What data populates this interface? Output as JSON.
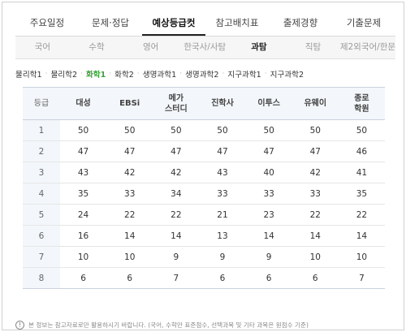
{
  "main_tabs": [
    {
      "label": "주요일정"
    },
    {
      "label": "문제·정답"
    },
    {
      "label": "예상등급컷",
      "active": true
    },
    {
      "label": "참고배치표"
    },
    {
      "label": "출제경향"
    },
    {
      "label": "기출문제"
    }
  ],
  "sub_tabs": [
    {
      "label": "국어"
    },
    {
      "label": "수학"
    },
    {
      "label": "영어"
    },
    {
      "label": "한국사/사탐"
    },
    {
      "label": "과탐",
      "active": true
    },
    {
      "label": "직탐"
    },
    {
      "label": "제2외국어/한문"
    }
  ],
  "subjects": [
    {
      "label": "물리학1"
    },
    {
      "label": "물리학2"
    },
    {
      "label": "화학1",
      "active": true
    },
    {
      "label": "화학2"
    },
    {
      "label": "생명과학1"
    },
    {
      "label": "생명과학2"
    },
    {
      "label": "지구과학1"
    },
    {
      "label": "지구과학2"
    }
  ],
  "table": {
    "grade_header": "등급",
    "columns": [
      "대성",
      "EBSi",
      "메가\n스터디",
      "진학사",
      "이투스",
      "유웨이",
      "종로\n학원"
    ],
    "rows": [
      {
        "grade": "1",
        "values": [
          "50",
          "50",
          "50",
          "50",
          "50",
          "50",
          "50"
        ]
      },
      {
        "grade": "2",
        "values": [
          "47",
          "47",
          "47",
          "47",
          "47",
          "47",
          "46"
        ]
      },
      {
        "grade": "3",
        "values": [
          "43",
          "42",
          "42",
          "43",
          "40",
          "42",
          "41"
        ]
      },
      {
        "grade": "4",
        "values": [
          "35",
          "33",
          "34",
          "33",
          "33",
          "33",
          "35"
        ]
      },
      {
        "grade": "5",
        "values": [
          "24",
          "22",
          "22",
          "21",
          "23",
          "22",
          "22"
        ]
      },
      {
        "grade": "6",
        "values": [
          "16",
          "14",
          "14",
          "13",
          "14",
          "14",
          "14"
        ]
      },
      {
        "grade": "7",
        "values": [
          "10",
          "10",
          "9",
          "9",
          "9",
          "10",
          "10"
        ]
      },
      {
        "grade": "8",
        "values": [
          "6",
          "6",
          "7",
          "6",
          "6",
          "6",
          "7"
        ]
      }
    ]
  },
  "note": {
    "icon": "exclamation-circle-icon",
    "text": "본 정보는 참고자료로만 활용하시기 바랍니다. (국어, 수학만 표준점수, 선택과목 및 기타 과목은 원점수 기준)"
  }
}
